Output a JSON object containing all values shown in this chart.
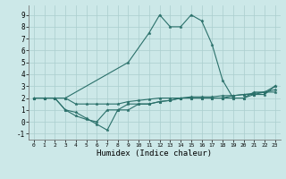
{
  "xlabel": "Humidex (Indice chaleur)",
  "background_color": "#cce8e8",
  "grid_color": "#aacece",
  "line_color": "#2a706a",
  "xlim": [
    -0.5,
    23.5
  ],
  "ylim": [
    -1.5,
    9.8
  ],
  "yticks": [
    -1,
    0,
    1,
    2,
    3,
    4,
    5,
    6,
    7,
    8,
    9
  ],
  "xticks": [
    0,
    1,
    2,
    3,
    4,
    5,
    6,
    7,
    8,
    9,
    10,
    11,
    12,
    13,
    14,
    15,
    16,
    17,
    18,
    19,
    20,
    21,
    22,
    23
  ],
  "series": [
    {
      "x": [
        0,
        1,
        2,
        3,
        9,
        11,
        12,
        13,
        14,
        15,
        16,
        17,
        18,
        19,
        20,
        21,
        22,
        23
      ],
      "y": [
        2,
        2,
        2,
        2,
        5,
        7.5,
        9,
        8,
        8,
        9,
        8.5,
        6.5,
        3.5,
        2,
        2,
        2.5,
        2.5,
        3
      ]
    },
    {
      "x": [
        0,
        1,
        2,
        3,
        4,
        5,
        6,
        7,
        8,
        9,
        10,
        11,
        12,
        13,
        14,
        15,
        16,
        17,
        18,
        19,
        20,
        21,
        22,
        23
      ],
      "y": [
        2,
        2,
        2,
        1,
        0.5,
        0.2,
        0,
        1,
        1,
        1.5,
        1.5,
        1.5,
        1.7,
        1.8,
        2,
        2,
        2,
        2,
        2,
        2.2,
        2.3,
        2.3,
        2.5,
        2.5
      ]
    },
    {
      "x": [
        0,
        1,
        2,
        3,
        4,
        5,
        6,
        7,
        8,
        9,
        10,
        11,
        12,
        13,
        14,
        15,
        16,
        17,
        18,
        19,
        20,
        21,
        22,
        23
      ],
      "y": [
        2,
        2,
        2,
        1,
        0.8,
        0.3,
        -0.2,
        -0.7,
        1,
        1,
        1.5,
        1.5,
        1.7,
        1.8,
        2,
        2,
        2,
        2,
        2,
        2,
        2,
        2.3,
        2.3,
        3
      ]
    },
    {
      "x": [
        0,
        1,
        2,
        3,
        4,
        5,
        6,
        7,
        8,
        9,
        10,
        11,
        12,
        13,
        14,
        15,
        16,
        17,
        18,
        19,
        20,
        21,
        22,
        23
      ],
      "y": [
        2,
        2,
        2,
        2,
        1.5,
        1.5,
        1.5,
        1.5,
        1.5,
        1.7,
        1.8,
        1.9,
        2.0,
        2.0,
        2.0,
        2.1,
        2.1,
        2.1,
        2.2,
        2.2,
        2.3,
        2.4,
        2.5,
        2.7
      ]
    }
  ]
}
